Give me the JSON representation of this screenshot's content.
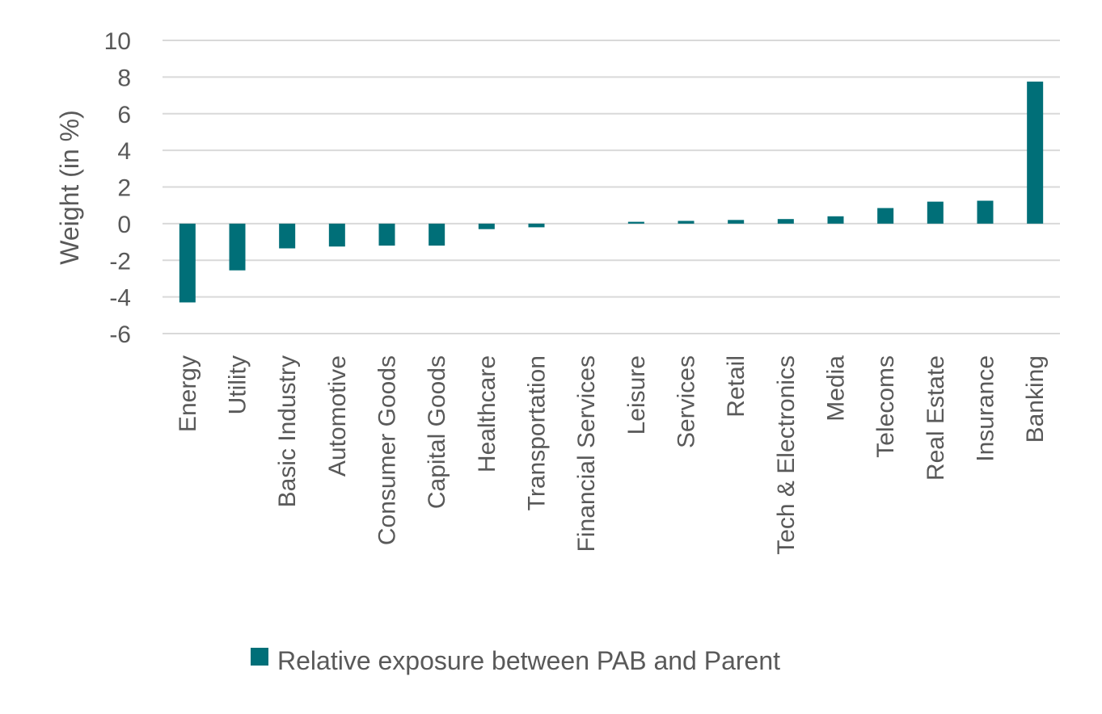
{
  "chart_data": {
    "type": "bar",
    "categories": [
      "Energy",
      "Utility",
      "Basic Industry",
      "Automotive",
      "Consumer Goods",
      "Capital Goods",
      "Healthcare",
      "Transportation",
      "Financial Services",
      "Leisure",
      "Services",
      "Retail",
      "Tech & Electronics",
      "Media",
      "Telecoms",
      "Real Estate",
      "Insurance",
      "Banking"
    ],
    "series": [
      {
        "name": "Relative exposure between PAB and Parent",
        "color": "#006f78",
        "values": [
          -4.3,
          -2.55,
          -1.35,
          -1.25,
          -1.2,
          -1.2,
          -0.3,
          -0.2,
          0.0,
          0.1,
          0.15,
          0.2,
          0.25,
          0.4,
          0.85,
          1.2,
          1.25,
          7.75
        ]
      }
    ],
    "ylabel": "Weight (in %)",
    "xlabel": "",
    "title": "",
    "ylim": [
      -6,
      10
    ],
    "yticks": [
      -6,
      -4,
      -2,
      0,
      2,
      4,
      6,
      8,
      10
    ],
    "grid": true,
    "legend_position": "bottom"
  }
}
